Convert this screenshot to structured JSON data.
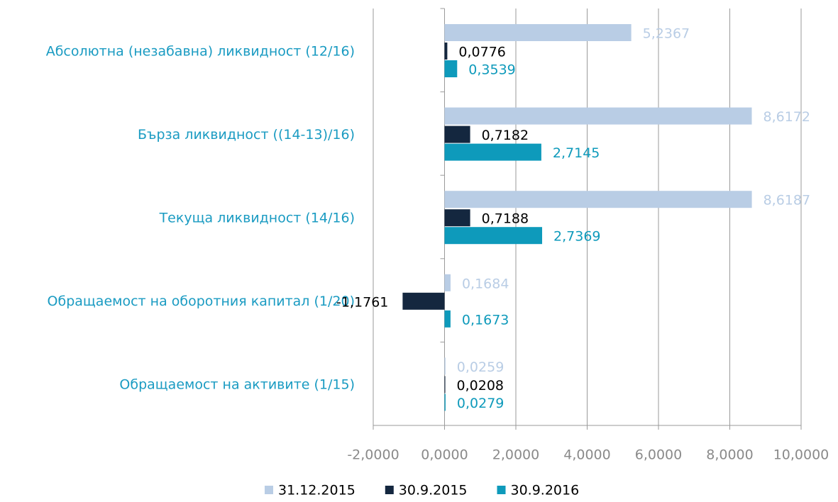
{
  "chart_data": {
    "type": "barh",
    "categories": [
      "Абсолютна (незабавна) ликвидност (12/16)",
      "Бърза ликвидност ((14-13)/16)",
      "Текуща ликвидност (14/16)",
      "Обращаемост на оборотния капитал (1/20)",
      "Обращаемост на активите (1/15)"
    ],
    "series": [
      {
        "name": "31.12.2015",
        "color": "#b9cde5",
        "label_color": "#b9cde5",
        "values": [
          5.2367,
          8.6172,
          8.6187,
          0.1684,
          0.0259
        ],
        "value_labels": [
          "5,2367",
          "8,6172",
          "8,6187",
          "0,1684",
          "0,0259"
        ]
      },
      {
        "name": "30.9.2015",
        "color": "#14273f",
        "label_color": "#000000",
        "values": [
          0.0776,
          0.7182,
          0.7188,
          -1.1761,
          0.0208
        ],
        "value_labels": [
          "0,0776",
          "0,7182",
          "0,7188",
          "-1,1761",
          "0,0208"
        ]
      },
      {
        "name": "30.9.2016",
        "color": "#0e9abb",
        "label_color": "#0e9abb",
        "values": [
          0.3539,
          2.7145,
          2.7369,
          0.1673,
          0.0279
        ],
        "value_labels": [
          "0,3539",
          "2,7145",
          "2,7369",
          "0,1673",
          "0,0279"
        ]
      }
    ],
    "category_color": "#1a9bc2",
    "xlim": [
      -2,
      10
    ],
    "xticks": [
      {
        "value": -2,
        "label": "-2,0000"
      },
      {
        "value": 0,
        "label": "0,0000"
      },
      {
        "value": 2,
        "label": "2,0000"
      },
      {
        "value": 4,
        "label": "4,0000"
      },
      {
        "value": 6,
        "label": "6,0000"
      },
      {
        "value": 8,
        "label": "8,0000"
      },
      {
        "value": 10,
        "label": "10,0000"
      }
    ],
    "grid": true,
    "legend": "bottom"
  }
}
